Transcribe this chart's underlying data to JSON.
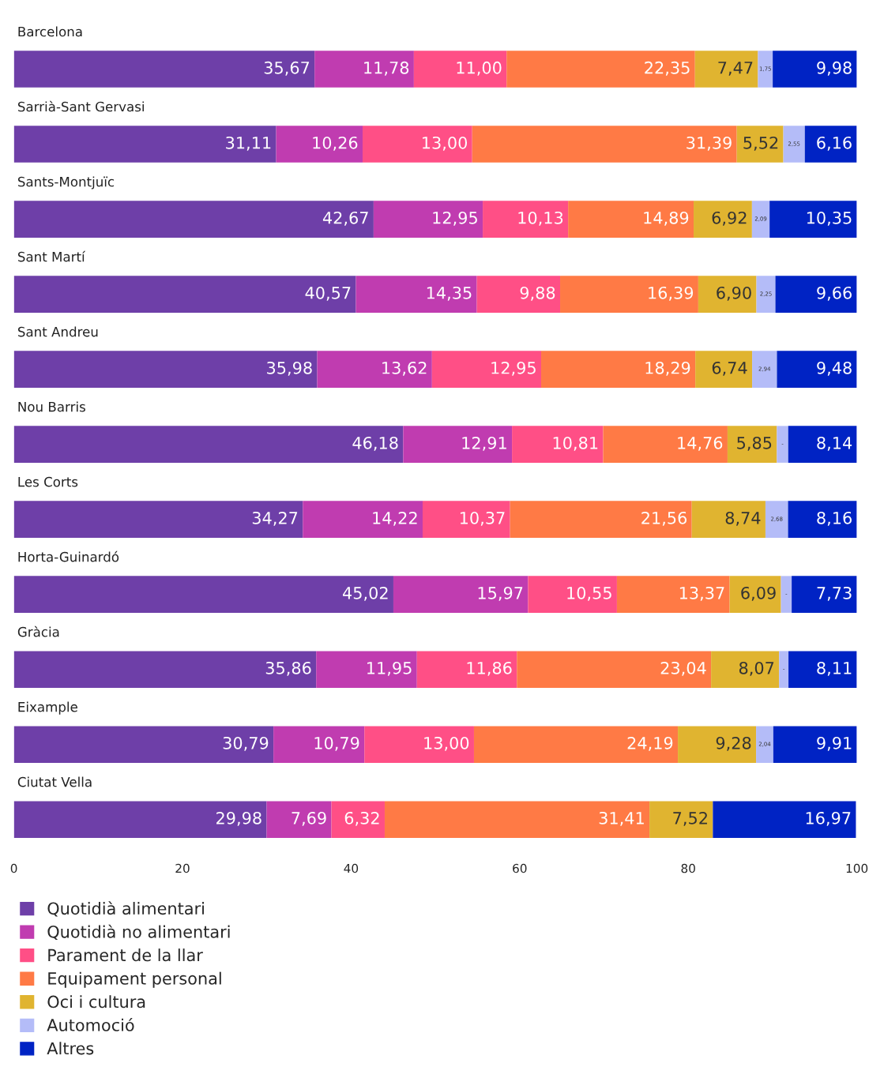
{
  "chart_data": {
    "type": "bar",
    "orientation": "horizontal",
    "stacked": true,
    "legend": "bottom left",
    "grid": false,
    "categories": [
      "Barcelona",
      "Sarrià-Sant Gervasi",
      "Sants-Montjuïc",
      "Sant Martí",
      "Sant Andreu",
      "Nou Barris",
      "Les Corts",
      "Horta-Guinardó",
      "Gràcia",
      "Eixample",
      "Ciutat Vella"
    ],
    "xlim": [
      0,
      100
    ],
    "xticks": [
      0,
      20,
      40,
      60,
      80,
      100
    ],
    "series": [
      {
        "name": "Quotidià alimentari",
        "color": "#6e3fa8",
        "values": [
          35.67,
          31.11,
          42.67,
          40.57,
          35.98,
          46.18,
          34.27,
          45.02,
          35.86,
          30.79,
          29.98
        ],
        "value_labels": [
          "35,67",
          "31,11",
          "42,67",
          "40,57",
          "35,98",
          "46,18",
          "34,27",
          "45,02",
          "35,86",
          "30,79",
          "29,98"
        ]
      },
      {
        "name": "Quotidià no alimentari",
        "color": "#c03cb0",
        "values": [
          11.78,
          10.26,
          12.95,
          14.35,
          13.62,
          12.91,
          14.22,
          15.97,
          11.95,
          10.79,
          7.69
        ],
        "value_labels": [
          "11,78",
          "10,26",
          "12,95",
          "14,35",
          "13,62",
          "12,91",
          "14,22",
          "15,97",
          "11,95",
          "10,79",
          "7,69"
        ]
      },
      {
        "name": "Parament de la llar",
        "color": "#ff4f86",
        "values": [
          11.0,
          13.0,
          10.13,
          9.88,
          12.95,
          10.81,
          10.37,
          10.55,
          11.86,
          13.0,
          6.32
        ],
        "value_labels": [
          "11,00",
          "13,00",
          "10,13",
          "9,88",
          "12,95",
          "10,81",
          "10,37",
          "10,55",
          "11,86",
          "13,00",
          "6,32"
        ]
      },
      {
        "name": "Equipament personal",
        "color": "#ff7a45",
        "values": [
          22.35,
          31.39,
          14.89,
          16.39,
          18.29,
          14.76,
          21.56,
          13.37,
          23.04,
          24.19,
          31.41
        ],
        "value_labels": [
          "22,35",
          "31,39",
          "14,89",
          "16,39",
          "18,29",
          "14,76",
          "21,56",
          "13,37",
          "23,04",
          "24,19",
          "31,41"
        ]
      },
      {
        "name": "Oci i cultura",
        "color": "#e0b430",
        "values": [
          7.47,
          5.52,
          6.92,
          6.9,
          6.74,
          5.85,
          8.74,
          6.09,
          8.07,
          9.28,
          7.52
        ],
        "value_labels": [
          "7,47",
          "5,52",
          "6,92",
          "6,90",
          "6,74",
          "5,85",
          "8,74",
          "6,09",
          "8,07",
          "9,28",
          "7,52"
        ]
      },
      {
        "name": "Automoció",
        "color": "#b4bcf8",
        "values": [
          1.75,
          2.55,
          2.09,
          2.25,
          2.94,
          1.35,
          2.68,
          1.27,
          1.11,
          2.04,
          null
        ],
        "value_labels": [
          "1,75",
          "2,55",
          "2,09",
          "2,25",
          "2,94",
          "-",
          "2,68",
          "-",
          "-",
          "2,04",
          null
        ]
      },
      {
        "name": "Altres",
        "color": "#0023c4",
        "values": [
          9.98,
          6.16,
          10.35,
          9.66,
          9.48,
          8.14,
          8.16,
          7.73,
          8.11,
          9.91,
          16.97
        ],
        "value_labels": [
          "9,98",
          "6,16",
          "10,35",
          "9,66",
          "9,48",
          "8,14",
          "8,16",
          "7,73",
          "8,11",
          "9,91",
          "16,97"
        ]
      }
    ]
  }
}
